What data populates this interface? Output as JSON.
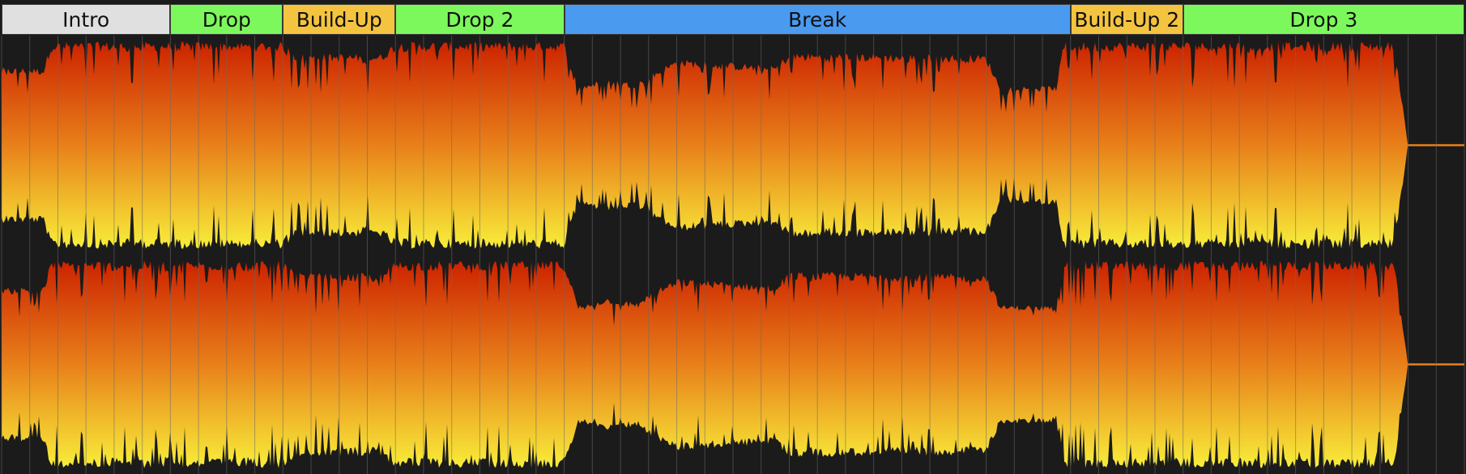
{
  "app": {
    "view": "arrangement-markers-waveform"
  },
  "colors": {
    "background": "#1b1b1b",
    "gridline": "#6a6a6a",
    "wave_peak": "#cc2200",
    "wave_mid": "#e8801a",
    "wave_base": "#f8ee3a",
    "intro": "#e0e0e0",
    "drop": "#7cf85c",
    "buildup": "#f4c340",
    "break": "#4a9af0"
  },
  "timeline": {
    "bars_total": 104,
    "grid_step_bars": 2
  },
  "markers": [
    {
      "label": "Intro",
      "kind": "intro",
      "start_bar": 0,
      "end_bar": 12
    },
    {
      "label": "Drop",
      "kind": "drop",
      "start_bar": 12,
      "end_bar": 20
    },
    {
      "label": "Build-Up",
      "kind": "buildup",
      "start_bar": 20,
      "end_bar": 28
    },
    {
      "label": "Drop 2",
      "kind": "drop",
      "start_bar": 28,
      "end_bar": 40
    },
    {
      "label": "Break",
      "kind": "break",
      "start_bar": 40,
      "end_bar": 76
    },
    {
      "label": "Build-Up 2",
      "kind": "buildup",
      "start_bar": 76,
      "end_bar": 84
    },
    {
      "label": "Drop 3",
      "kind": "drop",
      "start_bar": 84,
      "end_bar": 104
    }
  ],
  "waveform": {
    "channels": 2,
    "loudness_profile": [
      {
        "at_bar": 0,
        "level": 0.72
      },
      {
        "at_bar": 3,
        "level": 0.72
      },
      {
        "at_bar": 3.5,
        "level": 0.96
      },
      {
        "at_bar": 20,
        "level": 0.96
      },
      {
        "at_bar": 21,
        "level": 0.85
      },
      {
        "at_bar": 27,
        "level": 0.85
      },
      {
        "at_bar": 28,
        "level": 0.96
      },
      {
        "at_bar": 40,
        "level": 0.96
      },
      {
        "at_bar": 41,
        "level": 0.55
      },
      {
        "at_bar": 43,
        "level": 0.62
      },
      {
        "at_bar": 45,
        "level": 0.58
      },
      {
        "at_bar": 48,
        "level": 0.8
      },
      {
        "at_bar": 55,
        "level": 0.74
      },
      {
        "at_bar": 56,
        "level": 0.86
      },
      {
        "at_bar": 70,
        "level": 0.84
      },
      {
        "at_bar": 71,
        "level": 0.55
      },
      {
        "at_bar": 75,
        "level": 0.55
      },
      {
        "at_bar": 75.5,
        "level": 0.96
      },
      {
        "at_bar": 99,
        "level": 0.96
      },
      {
        "at_bar": 100,
        "level": 0.0
      },
      {
        "at_bar": 104,
        "level": 0.0
      }
    ]
  }
}
